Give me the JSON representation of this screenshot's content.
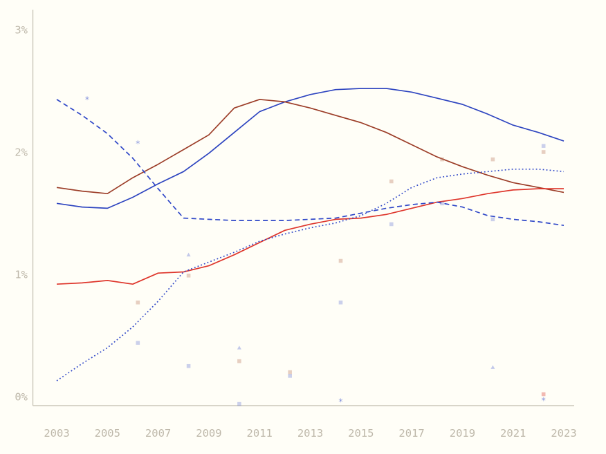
{
  "page": {
    "background_color": "#FFFEF7"
  },
  "chart_data": {
    "type": "line",
    "title": "",
    "subtitle": "",
    "legend": "none",
    "grid": false,
    "axes": {
      "axis_color": "#CBC7BA",
      "tick_label_color": "#BEB8AA",
      "y_ticks": [
        {
          "label": "0%",
          "value": 0
        },
        {
          "label": "1%",
          "value": 1
        },
        {
          "label": "2%",
          "value": 2
        },
        {
          "label": "3%",
          "value": 3
        }
      ],
      "x_ticks": [
        2003,
        2005,
        2007,
        2009,
        2011,
        2013,
        2015,
        2017,
        2019,
        2021,
        2023
      ],
      "xlim": [
        2003,
        2023
      ],
      "ylim": [
        -0.07,
        3.16
      ],
      "y_unit": "percent"
    },
    "x": [
      2003,
      2004,
      2005,
      2006,
      2007,
      2008,
      2009,
      2010,
      2011,
      2012,
      2013,
      2014,
      2015,
      2016,
      2017,
      2018,
      2019,
      2020,
      2021,
      2022,
      2023
    ],
    "series": [
      {
        "name": "blue-solid",
        "style": "solid",
        "color": "#2E45C0",
        "values": [
          1.58,
          1.55,
          1.54,
          1.63,
          1.74,
          1.84,
          1.99,
          2.16,
          2.33,
          2.41,
          2.47,
          2.51,
          2.52,
          2.52,
          2.49,
          2.44,
          2.39,
          2.31,
          2.22,
          2.16,
          2.09
        ]
      },
      {
        "name": "brown-solid",
        "style": "solid",
        "color": "#9C3D28",
        "values": [
          1.71,
          1.68,
          1.66,
          1.79,
          1.9,
          2.02,
          2.14,
          2.36,
          2.43,
          2.41,
          2.36,
          2.3,
          2.24,
          2.16,
          2.06,
          1.96,
          1.88,
          1.81,
          1.75,
          1.71,
          1.67
        ]
      },
      {
        "name": "red-solid",
        "style": "solid",
        "color": "#DE352B",
        "values": [
          0.92,
          0.93,
          0.95,
          0.92,
          1.01,
          1.02,
          1.07,
          1.16,
          1.26,
          1.36,
          1.41,
          1.45,
          1.46,
          1.49,
          1.54,
          1.59,
          1.62,
          1.66,
          1.69,
          1.7,
          1.7
        ]
      },
      {
        "name": "blue-dashed",
        "style": "dashed",
        "color": "#3048C8",
        "values": [
          2.43,
          2.3,
          2.15,
          1.95,
          1.7,
          1.46,
          1.45,
          1.44,
          1.44,
          1.44,
          1.45,
          1.46,
          1.5,
          1.54,
          1.57,
          1.59,
          1.55,
          1.48,
          1.45,
          1.43,
          1.4
        ]
      },
      {
        "name": "blue-dotted",
        "style": "dotted",
        "color": "#3048C8",
        "values": [
          0.13,
          0.27,
          0.4,
          0.57,
          0.78,
          1.02,
          1.1,
          1.18,
          1.27,
          1.33,
          1.38,
          1.42,
          1.48,
          1.58,
          1.71,
          1.79,
          1.82,
          1.84,
          1.86,
          1.86,
          1.84
        ]
      }
    ],
    "scatter": {
      "palette": {
        "blue": {
          "fill": "#5468D2",
          "opacity": 0.3
        },
        "brown": {
          "fill": "#C08468",
          "opacity": 0.38
        },
        "red": {
          "fill": "#E2655C",
          "opacity": 0.45
        }
      },
      "points": [
        {
          "year": 2004.2,
          "value": 2.44,
          "color": "blue",
          "shape": "star"
        },
        {
          "year": 2006.2,
          "value": 2.08,
          "color": "blue",
          "shape": "star"
        },
        {
          "year": 2006.2,
          "value": 0.77,
          "color": "brown",
          "shape": "square"
        },
        {
          "year": 2006.2,
          "value": 0.44,
          "color": "blue",
          "shape": "square"
        },
        {
          "year": 2008.2,
          "value": 1.16,
          "color": "blue",
          "shape": "triangle"
        },
        {
          "year": 2008.2,
          "value": 0.99,
          "color": "brown",
          "shape": "square"
        },
        {
          "year": 2008.2,
          "value": 0.25,
          "color": "blue",
          "shape": "square"
        },
        {
          "year": 2010.2,
          "value": 0.4,
          "color": "blue",
          "shape": "triangle"
        },
        {
          "year": 2010.2,
          "value": 0.29,
          "color": "brown",
          "shape": "square"
        },
        {
          "year": 2010.2,
          "value": -0.06,
          "color": "blue",
          "shape": "square"
        },
        {
          "year": 2012.2,
          "value": 0.2,
          "color": "brown",
          "shape": "square"
        },
        {
          "year": 2012.2,
          "value": 0.17,
          "color": "blue",
          "shape": "square"
        },
        {
          "year": 2014.2,
          "value": 1.11,
          "color": "brown",
          "shape": "square"
        },
        {
          "year": 2014.2,
          "value": 0.77,
          "color": "blue",
          "shape": "square"
        },
        {
          "year": 2014.2,
          "value": -0.03,
          "color": "blue",
          "shape": "star"
        },
        {
          "year": 2016.2,
          "value": 1.76,
          "color": "brown",
          "shape": "square"
        },
        {
          "year": 2016.2,
          "value": 1.41,
          "color": "blue",
          "shape": "square"
        },
        {
          "year": 2018.2,
          "value": 1.94,
          "color": "brown",
          "shape": "square"
        },
        {
          "year": 2018.2,
          "value": 1.58,
          "color": "blue",
          "shape": "square"
        },
        {
          "year": 2020.2,
          "value": 1.94,
          "color": "brown",
          "shape": "square"
        },
        {
          "year": 2020.2,
          "value": 1.45,
          "color": "blue",
          "shape": "square"
        },
        {
          "year": 2020.2,
          "value": 0.24,
          "color": "blue",
          "shape": "triangle"
        },
        {
          "year": 2022.2,
          "value": 2.05,
          "color": "blue",
          "shape": "square"
        },
        {
          "year": 2022.2,
          "value": 2.0,
          "color": "brown",
          "shape": "square"
        },
        {
          "year": 2022.2,
          "value": 0.02,
          "color": "red",
          "shape": "square"
        },
        {
          "year": 2022.2,
          "value": -0.02,
          "color": "blue",
          "shape": "star"
        }
      ]
    }
  }
}
